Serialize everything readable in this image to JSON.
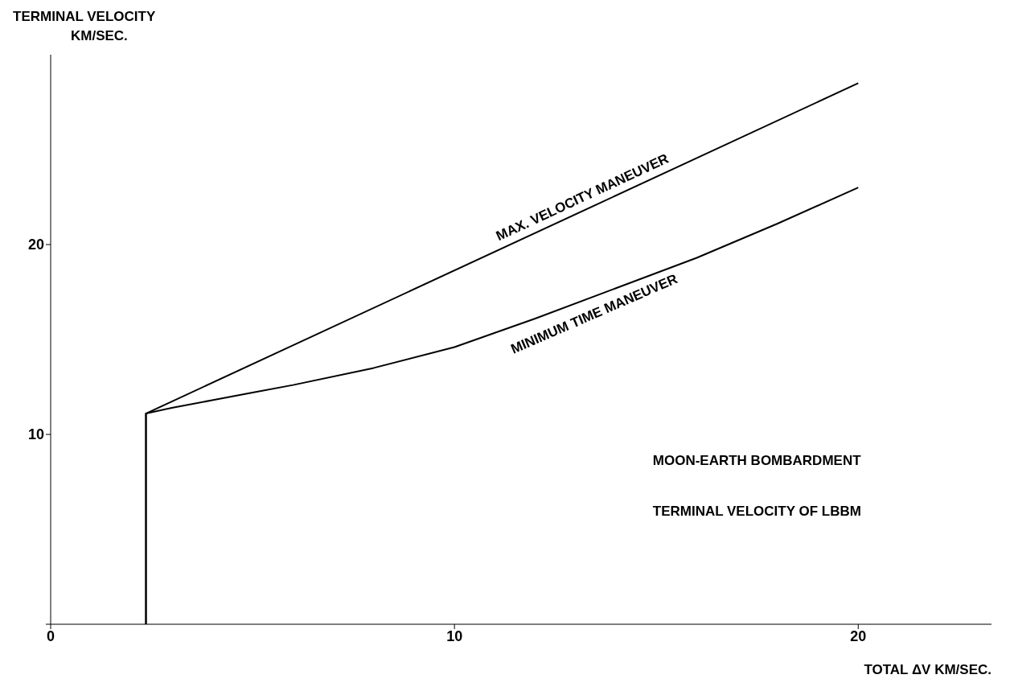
{
  "chart_data": {
    "type": "line",
    "xlabel": "TOTAL ΔV  KM/SEC.",
    "ylabel": "TERMINAL VELOCITY\nKM/SEC.",
    "series": [
      {
        "name": "MAX. VELOCITY MANEUVER",
        "color": "#000000",
        "x": [
          2.36,
          2.36,
          20
        ],
        "values": [
          0,
          11.1,
          28.5
        ]
      },
      {
        "name": "MINIMUM TIME MANEUVER",
        "color": "#000000",
        "x": [
          2.36,
          2.36,
          3,
          4,
          5,
          6,
          8,
          10,
          12,
          14,
          16,
          18,
          20
        ],
        "values": [
          0,
          11.1,
          11.4,
          11.8,
          12.2,
          12.6,
          13.5,
          14.6,
          16.1,
          17.7,
          19.3,
          21.1,
          23.0
        ]
      }
    ],
    "xlim": [
      0,
      23.3
    ],
    "ylim": [
      0,
      30
    ],
    "xticks": [
      0,
      10,
      20
    ],
    "yticks": [
      {
        "value": 0,
        "label": null
      },
      10,
      20
    ],
    "grid": false,
    "legend": false,
    "marker": "none",
    "line_style": "solid",
    "annotations": [
      "MOON-EARTH BOMBARDMENT",
      "TERMINAL VELOCITY OF LBBM"
    ]
  }
}
